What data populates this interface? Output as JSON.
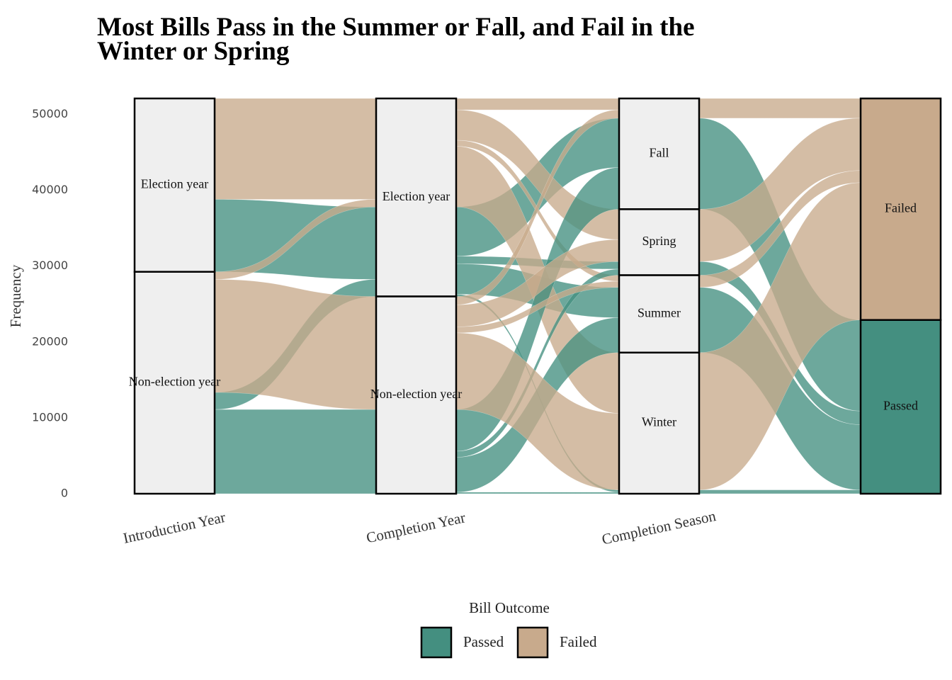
{
  "chart_data": {
    "type": "alluvial",
    "title": "Most Bills Pass in the Summer or Fall, and Fail in the Winter or Spring",
    "y_label": "Frequency",
    "legend_title": "Bill Outcome",
    "ylim": [
      0,
      52100
    ],
    "yticks": [
      0,
      10000,
      20000,
      30000,
      40000,
      50000
    ],
    "series": [
      {
        "name": "Passed",
        "color": "#448f80"
      },
      {
        "name": "Failed",
        "color": "#c8aa8c"
      }
    ],
    "axes": [
      {
        "label": "Introduction Year",
        "strata": [
          "Election year",
          "Non-election year"
        ]
      },
      {
        "label": "Completion Year",
        "strata": [
          "Election year",
          "Non-election year"
        ]
      },
      {
        "label": "Completion Season",
        "strata": [
          "Fall",
          "Spring",
          "Summer",
          "Winter"
        ]
      },
      {
        "label": null,
        "strata": [
          "Failed",
          "Passed"
        ]
      }
    ],
    "flows": [
      [
        {
          "from": "Election year",
          "to": "Election year",
          "outcome": "Failed",
          "value": 13300
        },
        {
          "from": "Election year",
          "to": "Election year",
          "outcome": "Passed",
          "value": 9550
        },
        {
          "from": "Non-election year",
          "to": "Election year",
          "outcome": "Failed",
          "value": 1000
        },
        {
          "from": "Non-election year",
          "to": "Election year",
          "outcome": "Passed",
          "value": 2250
        },
        {
          "from": "Non-election year",
          "to": "Non-election year",
          "outcome": "Failed",
          "value": 14900
        },
        {
          "from": "Non-election year",
          "to": "Non-election year",
          "outcome": "Passed",
          "value": 11100
        }
      ],
      [
        {
          "from": "Election year",
          "to": "Fall",
          "outcome": "Passed",
          "value": 6500
        },
        {
          "from": "Election year",
          "to": "Summer",
          "outcome": "Passed",
          "value": 4000
        },
        {
          "from": "Election year",
          "to": "Spring",
          "outcome": "Passed",
          "value": 1000
        },
        {
          "from": "Election year",
          "to": "Winter",
          "outcome": "Passed",
          "value": 300
        },
        {
          "from": "Election year",
          "to": "Fall",
          "outcome": "Failed",
          "value": 1500
        },
        {
          "from": "Election year",
          "to": "Summer",
          "outcome": "Failed",
          "value": 800
        },
        {
          "from": "Election year",
          "to": "Spring",
          "outcome": "Failed",
          "value": 4000
        },
        {
          "from": "Election year",
          "to": "Winter",
          "outcome": "Failed",
          "value": 8000
        },
        {
          "from": "Non-election year",
          "to": "Fall",
          "outcome": "Passed",
          "value": 5500
        },
        {
          "from": "Non-election year",
          "to": "Summer",
          "outcome": "Passed",
          "value": 4600
        },
        {
          "from": "Non-election year",
          "to": "Spring",
          "outcome": "Passed",
          "value": 800
        },
        {
          "from": "Non-election year",
          "to": "Winter",
          "outcome": "Passed",
          "value": 200
        },
        {
          "from": "Non-election year",
          "to": "Fall",
          "outcome": "Failed",
          "value": 1100
        },
        {
          "from": "Non-election year",
          "to": "Summer",
          "outcome": "Failed",
          "value": 800
        },
        {
          "from": "Non-election year",
          "to": "Spring",
          "outcome": "Failed",
          "value": 2900
        },
        {
          "from": "Non-election year",
          "to": "Winter",
          "outcome": "Failed",
          "value": 10100
        }
      ],
      [
        {
          "from": "Fall",
          "to": "Passed",
          "outcome": "Passed",
          "value": 12000
        },
        {
          "from": "Fall",
          "to": "Failed",
          "outcome": "Failed",
          "value": 2600
        },
        {
          "from": "Spring",
          "to": "Passed",
          "outcome": "Passed",
          "value": 1800
        },
        {
          "from": "Spring",
          "to": "Failed",
          "outcome": "Failed",
          "value": 6900
        },
        {
          "from": "Summer",
          "to": "Passed",
          "outcome": "Passed",
          "value": 8600
        },
        {
          "from": "Summer",
          "to": "Failed",
          "outcome": "Failed",
          "value": 1600
        },
        {
          "from": "Winter",
          "to": "Passed",
          "outcome": "Passed",
          "value": 500
        },
        {
          "from": "Winter",
          "to": "Failed",
          "outcome": "Failed",
          "value": 18100
        }
      ]
    ]
  }
}
